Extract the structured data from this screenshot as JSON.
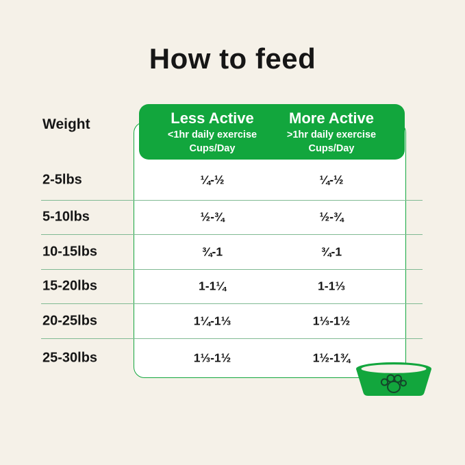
{
  "title": "How to feed",
  "colors": {
    "background": "#F5F1E8",
    "green": "#12A63D",
    "text": "#161616",
    "header_text": "#FFFFFF",
    "table_background": "#FFFFFF",
    "divider": "#7FB992",
    "paw_outline": "#14452A"
  },
  "table": {
    "weight_header": "Weight",
    "columns": [
      {
        "title": "Less Active",
        "subtitle": "<1hr daily exercise",
        "unit": "Cups/Day"
      },
      {
        "title": "More Active",
        "subtitle": ">1hr daily exercise",
        "unit": "Cups/Day"
      }
    ],
    "rows": [
      {
        "weight": "2-5lbs",
        "less_active": "¼-½",
        "more_active": "¼-½"
      },
      {
        "weight": "5-10lbs",
        "less_active": "½-¾",
        "more_active": "½-¾"
      },
      {
        "weight": "10-15lbs",
        "less_active": "¾-1",
        "more_active": "¾-1"
      },
      {
        "weight": "15-20lbs",
        "less_active": "1-1¼",
        "more_active": "1-1⅓"
      },
      {
        "weight": "20-25lbs",
        "less_active": "1¼-1⅓",
        "more_active": "1⅓-1½"
      },
      {
        "weight": "25-30lbs",
        "less_active": "1⅓-1½",
        "more_active": "1½-1¾"
      }
    ]
  },
  "icons": {
    "bowl": "dog-bowl-with-paw-print"
  },
  "chart_data": {
    "type": "table",
    "title": "How to feed",
    "columns": [
      "Weight",
      "Less Active (<1hr daily exercise) Cups/Day",
      "More Active (>1hr daily exercise) Cups/Day"
    ],
    "rows": [
      [
        "2-5lbs",
        "¼-½",
        "¼-½"
      ],
      [
        "5-10lbs",
        "½-¾",
        "½-¾"
      ],
      [
        "10-15lbs",
        "¾-1",
        "¾-1"
      ],
      [
        "15-20lbs",
        "1-1¼",
        "1-1⅓"
      ],
      [
        "20-25lbs",
        "1¼-1⅓",
        "1⅓-1½"
      ],
      [
        "25-30lbs",
        "1⅓-1½",
        "1½-1¾"
      ]
    ]
  }
}
